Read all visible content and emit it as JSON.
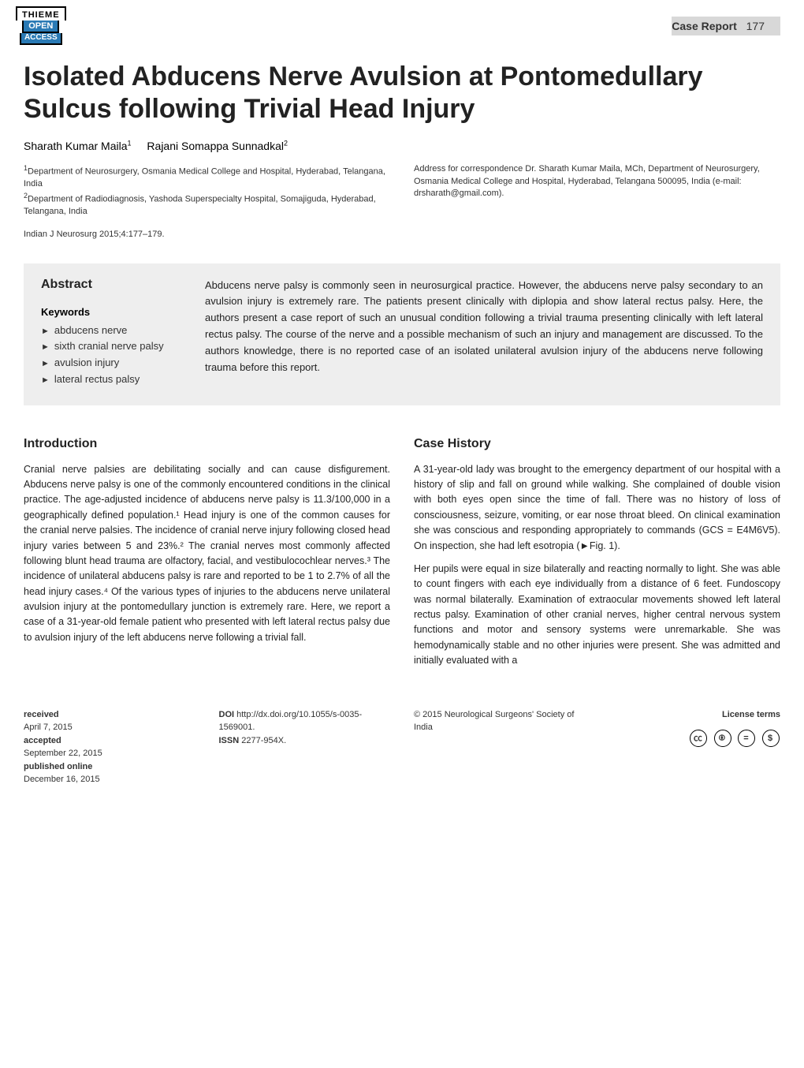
{
  "header": {
    "publisher_logo_top": "THIEME",
    "publisher_logo_mid": "OPEN",
    "publisher_logo_bottom": "ACCESS",
    "category": "Case Report",
    "page_number": "177"
  },
  "title": "Isolated Abducens Nerve Avulsion at Pontomedullary Sulcus following Trivial Head Injury",
  "authors": [
    {
      "name": "Sharath Kumar Maila",
      "affil_sup": "1"
    },
    {
      "name": "Rajani Somappa Sunnadkal",
      "affil_sup": "2"
    }
  ],
  "affiliations": [
    "Department of Neurosurgery, Osmania Medical College and Hospital, Hyderabad, Telangana, India",
    "Department of Radiodiagnosis, Yashoda Superspecialty Hospital, Somajiguda, Hyderabad, Telangana, India"
  ],
  "correspondence": {
    "label": "Address for correspondence",
    "text": "Dr. Sharath Kumar Maila, MCh, Department of Neurosurgery, Osmania Medical College and Hospital, Hyderabad, Telangana 500095, India (e-mail: drsharath@gmail.com)."
  },
  "journal_ref": "Indian J Neurosurg 2015;4:177–179.",
  "abstract": {
    "heading": "Abstract",
    "keywords_heading": "Keywords",
    "keywords": [
      "abducens nerve",
      "sixth cranial nerve palsy",
      "avulsion injury",
      "lateral rectus palsy"
    ],
    "text": "Abducens nerve palsy is commonly seen in neurosurgical practice. However, the abducens nerve palsy secondary to an avulsion injury is extremely rare. The patients present clinically with diplopia and show lateral rectus palsy. Here, the authors present a case report of such an unusual condition following a trivial trauma presenting clinically with left lateral rectus palsy. The course of the nerve and a possible mechanism of such an injury and management are discussed. To the authors knowledge, there is no reported case of an isolated unilateral avulsion injury of the abducens nerve following trauma before this report."
  },
  "introduction": {
    "heading": "Introduction",
    "text": "Cranial nerve palsies are debilitating socially and can cause disfigurement. Abducens nerve palsy is one of the commonly encountered conditions in the clinical practice. The age-adjusted incidence of abducens nerve palsy is 11.3/100,000 in a geographically defined population.¹ Head injury is one of the common causes for the cranial nerve palsies. The incidence of cranial nerve injury following closed head injury varies between 5 and 23%.² The cranial nerves most commonly affected following blunt head trauma are olfactory, facial, and vestibulocochlear nerves.³ The incidence of unilateral abducens palsy is rare and reported to be 1 to 2.7% of all the head injury cases.⁴ Of the various types of injuries to the abducens nerve unilateral avulsion injury at the pontomedullary junction is extremely rare. Here, we report a case of a 31-year-old female patient who presented with left lateral rectus palsy due to avulsion injury of the left abducens nerve following a trivial fall."
  },
  "case_history": {
    "heading": "Case History",
    "para1": "A 31-year-old lady was brought to the emergency department of our hospital with a history of slip and fall on ground while walking. She complained of double vision with both eyes open since the time of fall. There was no history of loss of consciousness, seizure, vomiting, or ear nose throat bleed. On clinical examination she was conscious and responding appropriately to commands (GCS = E4M6V5). On inspection, she had left esotropia (►Fig. 1).",
    "para2": "Her pupils were equal in size bilaterally and reacting normally to light. She was able to count fingers with each eye individually from a distance of 6 feet. Fundoscopy was normal bilaterally. Examination of extraocular movements showed left lateral rectus palsy. Examination of other cranial nerves, higher central nervous system functions and motor and sensory systems were unremarkable. She was hemodynamically stable and no other injuries were present. She was admitted and initially evaluated with a"
  },
  "footer": {
    "received": {
      "label": "received",
      "value": "April 7, 2015"
    },
    "accepted": {
      "label": "accepted",
      "value": "September 22, 2015"
    },
    "published_online": {
      "label": "published online",
      "value": "December 16, 2015"
    },
    "doi": {
      "label": "DOI",
      "value": "http://dx.doi.org/10.1055/s-0035-1569001."
    },
    "issn": {
      "label": "ISSN",
      "value": "2277-954X."
    },
    "copyright": "© 2015 Neurological Surgeons' Society of India",
    "license_label": "License terms",
    "cc_icons": [
      "cc",
      "by",
      "nd",
      "sa"
    ]
  }
}
